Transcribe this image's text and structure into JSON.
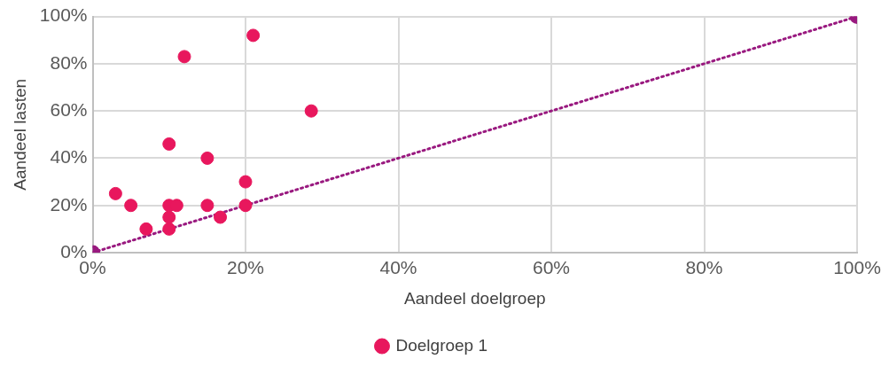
{
  "chart_data": {
    "type": "scatter",
    "xlabel": "Aandeel doelgroep",
    "ylabel": "Aandeel lasten",
    "x": [
      3,
      5,
      7,
      10,
      10,
      10,
      10,
      11,
      12,
      15,
      15,
      16.7,
      20,
      20,
      21,
      28.6
    ],
    "series": [
      {
        "name": "Doelgroep 1",
        "color": "#e8175d",
        "values": [
          25,
          20,
          10,
          46,
          20,
          15,
          10,
          20,
          83,
          40,
          20,
          15,
          30,
          20,
          92,
          60
        ]
      },
      {
        "type": "line",
        "color": "#99197f",
        "x": [
          0,
          100
        ],
        "values": [
          0,
          100
        ],
        "line_style": "dotted"
      }
    ],
    "xlim": [
      0,
      100
    ],
    "ylim": [
      0,
      100
    ],
    "xticks": [
      {
        "value": 0,
        "label": "0%"
      },
      {
        "value": 20,
        "label": "20%"
      },
      {
        "value": 40,
        "label": "40%"
      },
      {
        "value": 60,
        "label": "60%"
      },
      {
        "value": 80,
        "label": "80%"
      },
      {
        "value": 100,
        "label": "100%"
      }
    ],
    "yticks": [
      {
        "value": 0,
        "label": "0%"
      },
      {
        "value": 20,
        "label": "20%"
      },
      {
        "value": 40,
        "label": "40%"
      },
      {
        "value": 60,
        "label": "60%"
      },
      {
        "value": 80,
        "label": "80%"
      },
      {
        "value": 100,
        "label": "100%"
      }
    ],
    "grid": true,
    "legend": "bottom",
    "marker": "circle"
  }
}
